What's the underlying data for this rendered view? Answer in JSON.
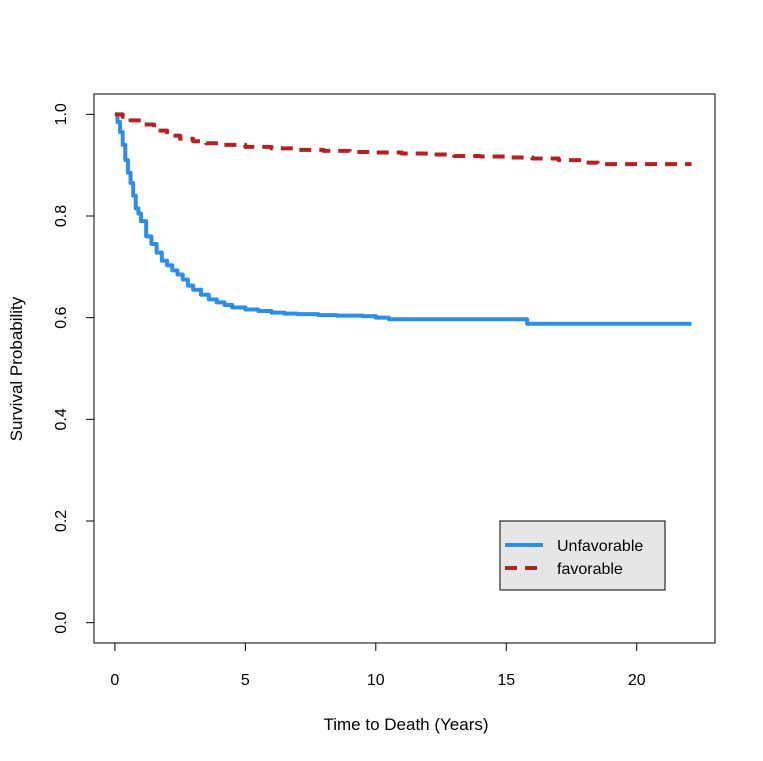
{
  "chart_data": {
    "type": "line",
    "title": "",
    "xlabel": "Time to Death (Years)",
    "ylabel": "Survival Probability",
    "xlim": [
      -0.8,
      23
    ],
    "ylim": [
      -0.04,
      1.04
    ],
    "x_ticks": [
      0,
      5,
      10,
      15,
      20
    ],
    "x_tick_labels": [
      "0",
      "5",
      "10",
      "15",
      "20"
    ],
    "y_ticks": [
      0.0,
      0.2,
      0.4,
      0.6,
      0.8,
      1.0
    ],
    "y_tick_labels": [
      "0.0",
      "0.2",
      "0.4",
      "0.6",
      "0.8",
      "1.0"
    ],
    "grid": false,
    "legend_position": "bottom-right",
    "series": [
      {
        "name": "Unfavorable",
        "color": "#2e8ee6",
        "dash": "solid",
        "x": [
          0,
          0.1,
          0.2,
          0.3,
          0.4,
          0.5,
          0.6,
          0.7,
          0.8,
          0.9,
          1.0,
          1.2,
          1.4,
          1.6,
          1.8,
          2.0,
          2.2,
          2.4,
          2.6,
          2.8,
          3.0,
          3.3,
          3.6,
          3.9,
          4.2,
          4.5,
          5.0,
          5.5,
          6.0,
          6.5,
          7.0,
          7.8,
          8.5,
          9.5,
          10.0,
          10.5,
          12.0,
          14.0,
          15.8,
          18.0,
          20.0,
          22.1
        ],
        "y": [
          1.0,
          0.985,
          0.965,
          0.94,
          0.91,
          0.885,
          0.865,
          0.84,
          0.815,
          0.805,
          0.79,
          0.76,
          0.745,
          0.728,
          0.712,
          0.703,
          0.693,
          0.685,
          0.675,
          0.663,
          0.655,
          0.645,
          0.636,
          0.63,
          0.625,
          0.62,
          0.616,
          0.613,
          0.61,
          0.608,
          0.607,
          0.605,
          0.604,
          0.603,
          0.6,
          0.597,
          0.597,
          0.597,
          0.588,
          0.588,
          0.588,
          0.588
        ]
      },
      {
        "name": "favorable",
        "color": "#b22222",
        "dash": "dashed",
        "x": [
          0,
          0.3,
          0.6,
          1.0,
          1.5,
          2.0,
          2.5,
          3.0,
          3.5,
          4.0,
          5.0,
          6.0,
          7.0,
          8.0,
          9.0,
          10.0,
          11.0,
          12.0,
          13.0,
          14.0,
          15.0,
          16.0,
          17.0,
          18.0,
          18.5,
          20.0,
          22.1
        ],
        "y": [
          1.0,
          0.995,
          0.988,
          0.98,
          0.968,
          0.958,
          0.952,
          0.947,
          0.943,
          0.94,
          0.936,
          0.933,
          0.93,
          0.928,
          0.926,
          0.925,
          0.923,
          0.921,
          0.918,
          0.917,
          0.915,
          0.913,
          0.91,
          0.905,
          0.902,
          0.902,
          0.902
        ]
      }
    ]
  }
}
